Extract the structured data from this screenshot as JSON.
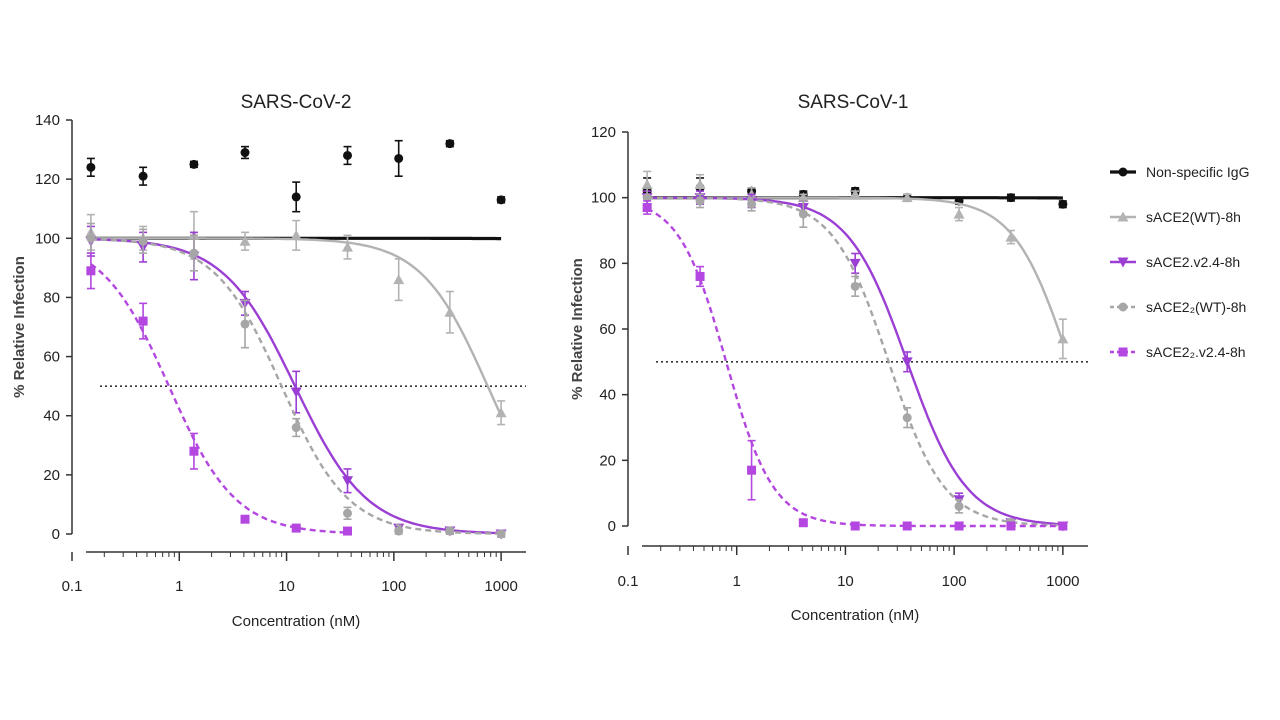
{
  "figure": {
    "legend": [
      {
        "label": "Non-specific IgG",
        "series": "igg"
      },
      {
        "label": "sACE2(WT)-8h",
        "series": "wt"
      },
      {
        "label": "sACE2.v2.4-8h",
        "series": "v24"
      },
      {
        "label": "sACE2₂(WT)-8h",
        "series": "wt2"
      },
      {
        "label": "sACE2₂.v2.4-8h",
        "series": "v242"
      }
    ]
  },
  "chart_data": [
    {
      "type": "scatter",
      "title": "SARS-CoV-2",
      "xlabel": "Concentration (nM)",
      "ylabel": "% Relative Infection",
      "xscale": "log",
      "xlim": [
        0.1,
        1500
      ],
      "ylim": [
        0,
        140
      ],
      "yticks": [
        0,
        20,
        40,
        60,
        80,
        100,
        120,
        140
      ],
      "xticks": [
        0.1,
        1,
        10,
        100,
        1000
      ],
      "xtick_labels": [
        "0.1",
        "1",
        "10",
        "100",
        "1000"
      ],
      "reference_line_y": 50,
      "series": [
        {
          "id": "igg",
          "name": "Non-specific IgG",
          "color": "#111111",
          "style": "solid",
          "marker": "circle",
          "x": [
            0.15,
            0.46,
            1.37,
            4.1,
            12.3,
            37,
            111,
            333,
            1000
          ],
          "y": [
            124,
            121,
            125,
            129,
            114,
            128,
            127,
            132,
            113
          ],
          "err": [
            3,
            3,
            1,
            2,
            5,
            3,
            6,
            1,
            1
          ],
          "fit": {
            "ic50": 1000000,
            "hill": 1
          }
        },
        {
          "id": "wt",
          "name": "sACE2(WT)-8h",
          "color": "#b3b3b3",
          "style": "solid",
          "marker": "triangle",
          "x": [
            0.15,
            0.46,
            1.37,
            4.1,
            12.3,
            37,
            111,
            333,
            1000
          ],
          "y": [
            102,
            100,
            101,
            99,
            101,
            97,
            86,
            75,
            41
          ],
          "err": [
            6,
            4,
            8,
            3,
            5,
            4,
            7,
            7,
            4
          ],
          "fit": {
            "ic50": 750,
            "hill": 1.4
          }
        },
        {
          "id": "v24",
          "name": "sACE2.v2.4-8h",
          "color": "#9b3fd4",
          "style": "solid",
          "marker": "triangle-down",
          "x": [
            0.15,
            0.46,
            1.37,
            4.1,
            12.3,
            37,
            111,
            333,
            1000
          ],
          "y": [
            99,
            97,
            94,
            78,
            48,
            18,
            2,
            1,
            0
          ],
          "err": [
            5,
            5,
            8,
            4,
            7,
            4,
            1,
            1,
            1
          ],
          "fit": {
            "ic50": 12,
            "hill": 1.3
          }
        },
        {
          "id": "wt2",
          "name": "sACE2₂(WT)-8h",
          "color": "#a6a6a6",
          "style": "dashed",
          "marker": "circle",
          "x": [
            0.15,
            0.46,
            1.37,
            4.1,
            12.3,
            37,
            111,
            333,
            1000
          ],
          "y": [
            100,
            99,
            95,
            71,
            36,
            7,
            1,
            1,
            0
          ],
          "err": [
            5,
            4,
            6,
            8,
            3,
            2,
            1,
            1,
            1
          ],
          "fit": {
            "ic50": 9,
            "hill": 1.4
          }
        },
        {
          "id": "v242",
          "name": "sACE2₂.v2.4-8h",
          "color": "#b347e0",
          "style": "dashed",
          "marker": "square",
          "x": [
            0.15,
            0.46,
            1.37,
            4.1,
            12.3,
            37
          ],
          "y": [
            89,
            72,
            28,
            5,
            2,
            1
          ],
          "err": [
            6,
            6,
            6,
            1,
            1,
            1
          ],
          "fit": {
            "ic50": 0.8,
            "hill": 1.4
          }
        }
      ]
    },
    {
      "type": "scatter",
      "title": "SARS-CoV-1",
      "xlabel": "Concentration (nM)",
      "ylabel": "% Relative Infection",
      "xscale": "log",
      "xlim": [
        0.1,
        1500
      ],
      "ylim": [
        0,
        120
      ],
      "yticks": [
        0,
        20,
        40,
        60,
        80,
        100,
        120
      ],
      "xticks": [
        0.1,
        1,
        10,
        100,
        1000
      ],
      "xtick_labels": [
        "0.1",
        "1",
        "10",
        "100",
        "1000"
      ],
      "reference_line_y": 50,
      "series": [
        {
          "id": "igg",
          "name": "Non-specific IgG",
          "color": "#111111",
          "style": "solid",
          "marker": "circle",
          "x": [
            0.15,
            0.46,
            1.37,
            4.1,
            12.3,
            37,
            111,
            333,
            1000
          ],
          "y": [
            102,
            103,
            102,
            101,
            102,
            100,
            99,
            100,
            98
          ],
          "err": [
            4,
            3,
            1,
            1,
            1,
            1,
            1,
            1,
            1
          ],
          "fit": {
            "ic50": 1000000,
            "hill": 1
          }
        },
        {
          "id": "wt",
          "name": "sACE2(WT)-8h",
          "color": "#b3b3b3",
          "style": "solid",
          "marker": "triangle",
          "x": [
            0.15,
            0.46,
            1.37,
            4.1,
            12.3,
            37,
            111,
            333,
            1000
          ],
          "y": [
            104,
            104,
            101,
            100,
            101,
            100,
            95,
            88,
            57
          ],
          "err": [
            4,
            3,
            2,
            1,
            1,
            1,
            2,
            2,
            6
          ],
          "fit": {
            "ic50": 1150,
            "hill": 1.7
          }
        },
        {
          "id": "v24",
          "name": "sACE2.v2.4-8h",
          "color": "#9b3fd4",
          "style": "solid",
          "marker": "triangle-down",
          "x": [
            0.15,
            0.46,
            1.37,
            4.1,
            12.3,
            37,
            111,
            333,
            1000
          ],
          "y": [
            100,
            100,
            99,
            97,
            80,
            50,
            8,
            1,
            0
          ],
          "err": [
            2,
            2,
            2,
            2,
            3,
            3,
            2,
            1,
            1
          ],
          "fit": {
            "ic50": 37,
            "hill": 1.6
          }
        },
        {
          "id": "wt2",
          "name": "sACE2₂(WT)-8h",
          "color": "#a6a6a6",
          "style": "dashed",
          "marker": "circle",
          "x": [
            0.15,
            0.46,
            1.37,
            4.1,
            12.3,
            37,
            111,
            333,
            1000
          ],
          "y": [
            100,
            99,
            98,
            95,
            73,
            33,
            6,
            1,
            0
          ],
          "err": [
            3,
            2,
            2,
            4,
            3,
            3,
            2,
            1,
            1
          ],
          "fit": {
            "ic50": 25,
            "hill": 1.7
          }
        },
        {
          "id": "v242",
          "name": "sACE2₂.v2.4-8h",
          "color": "#b347e0",
          "style": "dashed",
          "marker": "square",
          "x": [
            0.15,
            0.46,
            1.37,
            4.1,
            12.3,
            37,
            111,
            333,
            1000
          ],
          "y": [
            97,
            76,
            17,
            1,
            0,
            0,
            0,
            0,
            0
          ],
          "err": [
            2,
            3,
            9,
            1,
            1,
            1,
            1,
            1,
            1
          ],
          "fit": {
            "ic50": 0.8,
            "hill": 2
          }
        }
      ]
    }
  ]
}
